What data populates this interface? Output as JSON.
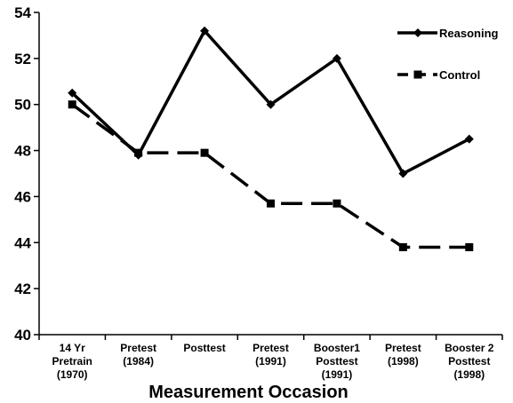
{
  "chart_data": {
    "type": "line",
    "categories": [
      [
        "14 Yr",
        "Pretrain",
        "(1970)"
      ],
      [
        "Pretest",
        "(1984)"
      ],
      [
        "Posttest"
      ],
      [
        "Pretest",
        "(1991)"
      ],
      [
        "Booster1",
        "Posttest",
        "(1991)"
      ],
      [
        "Pretest",
        "(1998)"
      ],
      [
        "Booster 2",
        "Posttest",
        "(1998)"
      ]
    ],
    "series": [
      {
        "name": "Reasoning",
        "values": [
          50.5,
          47.8,
          53.2,
          50.0,
          52.0,
          47.0,
          48.5
        ],
        "color": "#000000",
        "marker": "diamond",
        "dash": "solid"
      },
      {
        "name": "Control",
        "values": [
          50.0,
          47.9,
          47.9,
          45.7,
          45.7,
          43.8,
          43.8
        ],
        "color": "#000000",
        "marker": "square",
        "dash": "dashed"
      }
    ],
    "xlabel": "Measurement Occasion",
    "ylabel": "",
    "ylim": [
      40,
      54
    ],
    "yticks": [
      40,
      42,
      44,
      46,
      48,
      50,
      52,
      54
    ],
    "grid": false,
    "legend_position": "top-right"
  }
}
